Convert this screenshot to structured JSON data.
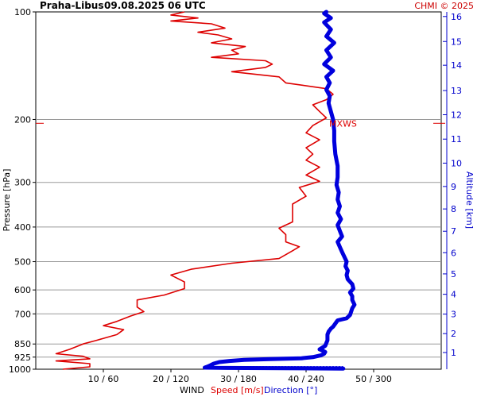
{
  "header": {
    "station": "Praha-Libus",
    "datetime": "09.08.2025 06 UTC",
    "credit": "CHMI © 2025"
  },
  "colors": {
    "speed": "#dd0000",
    "direction": "#0000dd",
    "grid": "#9a9a9a",
    "altitude_axis": "#0000cc"
  },
  "chart_data": {
    "type": "line",
    "title": "Praha-Libus   09.08.2025 06 UTC",
    "ylabel": "Pressure [hPa]",
    "y2label": "Altitude [km]",
    "xlabel_parts": [
      "WIND",
      "Speed [m/s]",
      "Direction [°]"
    ],
    "y_scale": "log",
    "ylim": [
      1000,
      100
    ],
    "y_ticks": [
      100,
      200,
      300,
      400,
      500,
      600,
      700,
      850,
      925,
      1000
    ],
    "x_ticks_speed": [
      10,
      20,
      30,
      40,
      50
    ],
    "x_ticks_direction": [
      60,
      120,
      180,
      240,
      300
    ],
    "x_tick_labels": [
      "10 / 60",
      "20 / 120",
      "30 / 180",
      "40 / 240",
      "50 / 300"
    ],
    "xlim_speed": [
      0,
      60
    ],
    "altitude_ticks_km": [
      1,
      2,
      3,
      4,
      5,
      6,
      7,
      8,
      9,
      10,
      11,
      12,
      13,
      14,
      15,
      16
    ],
    "altitude_ticks": [
      {
        "km": 1,
        "hpa": 898
      },
      {
        "km": 2,
        "hpa": 795
      },
      {
        "km": 3,
        "hpa": 701
      },
      {
        "km": 4,
        "hpa": 617
      },
      {
        "km": 5,
        "hpa": 541
      },
      {
        "km": 6,
        "hpa": 472
      },
      {
        "km": 7,
        "hpa": 411
      },
      {
        "km": 8,
        "hpa": 356
      },
      {
        "km": 9,
        "hpa": 308
      },
      {
        "km": 10,
        "hpa": 265
      },
      {
        "km": 11,
        "hpa": 227
      },
      {
        "km": 12,
        "hpa": 194
      },
      {
        "km": 13,
        "hpa": 166
      },
      {
        "km": 14,
        "hpa": 141
      },
      {
        "km": 15,
        "hpa": 121
      },
      {
        "km": 16,
        "hpa": 103
      }
    ],
    "annotation": {
      "text": "MXWS",
      "hpa": 205
    },
    "grid": true,
    "series": [
      {
        "name": "Speed [m/s]",
        "unit": "m/s",
        "points": [
          [
            4,
            1000
          ],
          [
            8,
            985
          ],
          [
            8,
            965
          ],
          [
            3,
            948
          ],
          [
            8,
            935
          ],
          [
            7,
            920
          ],
          [
            3,
            905
          ],
          [
            5,
            880
          ],
          [
            7,
            850
          ],
          [
            9,
            830
          ],
          [
            12,
            800
          ],
          [
            13,
            775
          ],
          [
            10,
            755
          ],
          [
            12,
            735
          ],
          [
            14,
            710
          ],
          [
            16,
            690
          ],
          [
            15,
            670
          ],
          [
            15,
            640
          ],
          [
            19,
            620
          ],
          [
            22,
            595
          ],
          [
            22,
            570
          ],
          [
            20,
            545
          ],
          [
            23,
            525
          ],
          [
            29,
            505
          ],
          [
            36,
            490
          ],
          [
            37,
            478
          ],
          [
            38,
            466
          ],
          [
            39,
            454
          ],
          [
            37,
            440
          ],
          [
            37,
            420
          ],
          [
            36,
            403
          ],
          [
            38,
            387
          ],
          [
            38,
            365
          ],
          [
            38,
            345
          ],
          [
            40,
            328
          ],
          [
            39,
            310
          ],
          [
            42,
            298
          ],
          [
            40,
            286
          ],
          [
            42,
            272
          ],
          [
            40,
            260
          ],
          [
            41,
            250
          ],
          [
            40,
            240
          ],
          [
            42,
            228
          ],
          [
            40,
            218
          ],
          [
            41,
            208
          ],
          [
            43,
            198
          ],
          [
            42,
            190
          ],
          [
            41,
            182
          ],
          [
            43,
            176
          ],
          [
            44,
            170
          ],
          [
            43,
            164
          ],
          [
            37,
            158
          ],
          [
            36,
            152
          ],
          [
            29,
            147
          ],
          [
            34,
            143
          ],
          [
            35,
            140
          ],
          [
            34,
            137
          ],
          [
            26,
            134
          ],
          [
            30,
            131
          ],
          [
            29,
            128
          ],
          [
            31,
            125
          ],
          [
            26,
            122
          ],
          [
            29,
            119
          ],
          [
            27,
            116
          ],
          [
            24,
            114
          ],
          [
            28,
            111
          ],
          [
            26,
            108
          ],
          [
            20,
            106
          ],
          [
            24,
            104
          ],
          [
            20,
            102
          ],
          [
            22,
            100
          ]
        ]
      },
      {
        "name": "Direction [°]",
        "unit": "deg",
        "points": [
          [
            273,
            996
          ],
          [
            170,
            992
          ],
          [
            150,
            990
          ],
          [
            152,
            985
          ],
          [
            155,
            975
          ],
          [
            158,
            965
          ],
          [
            163,
            955
          ],
          [
            172,
            948
          ],
          [
            185,
            942
          ],
          [
            208,
            937
          ],
          [
            236,
            932
          ],
          [
            246,
            925
          ],
          [
            253,
            915
          ],
          [
            256,
            905
          ],
          [
            257,
            895
          ],
          [
            255,
            888
          ],
          [
            252,
            880
          ],
          [
            257,
            860
          ],
          [
            259,
            830
          ],
          [
            259,
            800
          ],
          [
            260,
            785
          ],
          [
            262,
            770
          ],
          [
            264,
            760
          ],
          [
            266,
            745
          ],
          [
            268,
            730
          ],
          [
            276,
            720
          ],
          [
            279,
            705
          ],
          [
            280,
            690
          ],
          [
            281,
            675
          ],
          [
            283,
            660
          ],
          [
            281,
            640
          ],
          [
            281,
            625
          ],
          [
            279,
            610
          ],
          [
            282,
            595
          ],
          [
            281,
            578
          ],
          [
            277,
            560
          ],
          [
            276,
            545
          ],
          [
            277,
            530
          ],
          [
            275,
            515
          ],
          [
            276,
            500
          ],
          [
            274,
            485
          ],
          [
            272,
            470
          ],
          [
            270,
            455
          ],
          [
            268,
            440
          ],
          [
            272,
            425
          ],
          [
            270,
            410
          ],
          [
            268,
            395
          ],
          [
            271,
            380
          ],
          [
            268,
            365
          ],
          [
            270,
            350
          ],
          [
            268,
            335
          ],
          [
            269,
            320
          ],
          [
            267,
            305
          ],
          [
            268,
            290
          ],
          [
            268,
            270
          ],
          [
            266,
            250
          ],
          [
            265,
            230
          ],
          [
            265,
            215
          ],
          [
            264,
            200
          ],
          [
            262,
            190
          ],
          [
            260,
            180
          ],
          [
            261,
            172
          ],
          [
            258,
            165
          ],
          [
            261,
            158
          ],
          [
            258,
            152
          ],
          [
            264,
            146
          ],
          [
            256,
            140
          ],
          [
            262,
            134
          ],
          [
            258,
            128
          ],
          [
            265,
            122
          ],
          [
            258,
            117
          ],
          [
            262,
            112
          ],
          [
            256,
            107
          ],
          [
            262,
            104
          ],
          [
            256,
            101
          ],
          [
            258,
            100
          ]
        ]
      }
    ],
    "ground_trail": {
      "name": "Direction [°]",
      "hpa_from": 996,
      "hpa_to": 985,
      "dir_from": 150,
      "dir_to": 273
    }
  }
}
